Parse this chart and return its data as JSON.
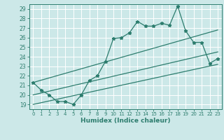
{
  "xlabel": "Humidex (Indice chaleur)",
  "bg_color": "#cce8e8",
  "grid_color": "#ffffff",
  "line_color": "#2d7d6e",
  "xlim": [
    -0.5,
    23.5
  ],
  "ylim": [
    18.5,
    29.5
  ],
  "xticks": [
    0,
    1,
    2,
    3,
    4,
    5,
    6,
    7,
    8,
    9,
    10,
    11,
    12,
    13,
    14,
    15,
    16,
    17,
    18,
    19,
    20,
    21,
    22,
    23
  ],
  "yticks": [
    19,
    20,
    21,
    22,
    23,
    24,
    25,
    26,
    27,
    28,
    29
  ],
  "series1_x": [
    0,
    1,
    2,
    3,
    4,
    5,
    6,
    7,
    8,
    9,
    10,
    11,
    12,
    13,
    14,
    15,
    16,
    17,
    18,
    19,
    20,
    21,
    22,
    23
  ],
  "series1_y": [
    21.3,
    20.5,
    20.0,
    19.3,
    19.3,
    19.0,
    20.0,
    21.5,
    22.0,
    23.5,
    25.9,
    26.0,
    26.5,
    27.7,
    27.2,
    27.2,
    27.5,
    27.3,
    29.3,
    26.7,
    25.5,
    25.5,
    23.3,
    23.8
  ],
  "series2_x": [
    0,
    23
  ],
  "series2_y": [
    21.3,
    26.8
  ],
  "series3_x": [
    0,
    23
  ],
  "series3_y": [
    20.0,
    24.5
  ],
  "series4_x": [
    0,
    23
  ],
  "series4_y": [
    19.0,
    23.2
  ]
}
